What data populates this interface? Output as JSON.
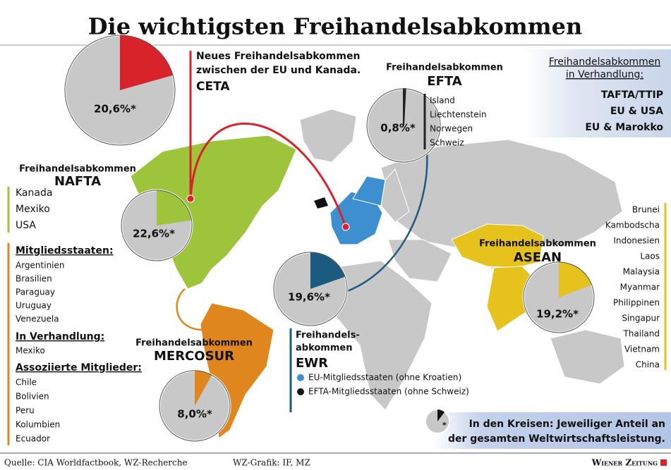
{
  "title": "Die wichtigsten Freihandelsabkommen",
  "ceta": {
    "lines": [
      "Neues Freihandelsabkommen",
      "zwischen der EU und Kanada."
    ],
    "name": "CETA",
    "share": 20.6,
    "share_label": "20,6%*",
    "color": "#d9232b"
  },
  "efta": {
    "kicker": "Freihandelsabkommen",
    "name": "EFTA",
    "members": [
      "Island",
      "Liechtenstein",
      "Norwegen",
      "Schweiz"
    ],
    "share": 0.8,
    "share_label": "0,8%*",
    "color": "#222222"
  },
  "negotiation": {
    "heading_lines": [
      "Freihandelsabkommen",
      "in Verhandlung:"
    ],
    "items": [
      "TAFTA/TTIP",
      "EU & USA",
      "EU & Marokko"
    ]
  },
  "nafta": {
    "kicker": "Freihandelsabkommen",
    "name": "NAFTA",
    "members": [
      "Kanada",
      "Mexiko",
      "USA"
    ],
    "share": 22.6,
    "share_label": "22,6%*",
    "color": "#9dc43a"
  },
  "mercosur": {
    "kicker": "Freihandelsabkommen",
    "name": "MERCOSUR",
    "members_heading": "Mitgliedsstaaten:",
    "members": [
      "Argentinien",
      "Brasilien",
      "Paraguay",
      "Uruguay",
      "Venezuela"
    ],
    "negotiation_heading": "In Verhandlung:",
    "negotiation": [
      "Mexiko"
    ],
    "associated_heading": "Assoziierte Mitglieder:",
    "associated": [
      "Chile",
      "Bolivien",
      "Peru",
      "Kolumbien",
      "Ecuador"
    ],
    "share": 8.0,
    "share_label": "8,0%*",
    "color": "#e0861e"
  },
  "ewr": {
    "kicker_lines": [
      "Freihandels-",
      "abkommen"
    ],
    "name": "EWR",
    "legend": [
      {
        "label": "EU-Mitgliedsstaaten (ohne Kroatien)",
        "color": "#3d8fd0"
      },
      {
        "label": "EFTA-Mitgliedsstaaten (ohne Schweiz)",
        "color": "#111111"
      }
    ],
    "share": 19.6,
    "share_label": "19,6%*",
    "color": "#1c5b80"
  },
  "asean": {
    "kicker": "Freihandelsabkommen",
    "name": "ASEAN",
    "members": [
      "Brunei",
      "Kambodscha",
      "Indonesien",
      "Laos",
      "Malaysia",
      "Myanmar",
      "Philippinen",
      "Singapur",
      "Thailand",
      "Vietnam",
      "China"
    ],
    "share": 19.2,
    "share_label": "19,2%*",
    "color": "#e6c21d"
  },
  "note_lines": [
    "In den Kreisen: Jeweiliger Anteil an",
    "der gesamten Weltwirtschaftsleistung."
  ],
  "footer": {
    "source": "Quelle: CIA Worldfactbook, WZ-Recherche",
    "credit": "WZ-Grafik: IF, MZ",
    "brand": "Wiener Zeitung"
  }
}
